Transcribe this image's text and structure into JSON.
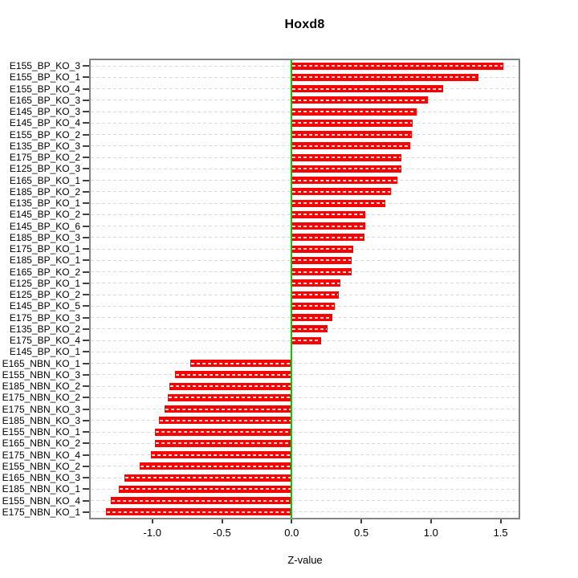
{
  "figure": {
    "background": "#ffffff"
  },
  "chart_data": {
    "type": "bar",
    "orientation": "horizontal",
    "title": "Hoxd8",
    "xlabel": "Z-value",
    "ylabel": "",
    "grid": true,
    "legend": false,
    "xlim": [
      -1.44,
      1.63
    ],
    "bar_color": "#fb0000",
    "zero_line_color": "#00cc00",
    "grid_color": "#d9d9d9",
    "frame_color": "#858585",
    "categories": [
      "E155_BP_KO_3",
      "E155_BP_KO_1",
      "E155_BP_KO_4",
      "E165_BP_KO_3",
      "E145_BP_KO_3",
      "E145_BP_KO_4",
      "E155_BP_KO_2",
      "E135_BP_KO_3",
      "E175_BP_KO_2",
      "E125_BP_KO_3",
      "E165_BP_KO_1",
      "E185_BP_KO_2",
      "E135_BP_KO_1",
      "E145_BP_KO_2",
      "E145_BP_KO_6",
      "E185_BP_KO_3",
      "E175_BP_KO_1",
      "E185_BP_KO_1",
      "E165_BP_KO_2",
      "E125_BP_KO_1",
      "E125_BP_KO_2",
      "E145_BP_KO_5",
      "E175_BP_KO_3",
      "E135_BP_KO_2",
      "E175_BP_KO_4",
      "E145_BP_KO_1",
      "E165_NBN_KO_1",
      "E155_NBN_KO_3",
      "E185_NBN_KO_2",
      "E175_NBN_KO_2",
      "E175_NBN_KO_3",
      "E185_NBN_KO_3",
      "E155_NBN_KO_1",
      "E165_NBN_KO_2",
      "E175_NBN_KO_4",
      "E155_NBN_KO_2",
      "E165_NBN_KO_3",
      "E185_NBN_KO_1",
      "E155_NBN_KO_4",
      "E175_NBN_KO_1"
    ],
    "values": [
      1.52,
      1.34,
      1.09,
      0.98,
      0.9,
      0.87,
      0.86,
      0.85,
      0.79,
      0.79,
      0.76,
      0.71,
      0.67,
      0.53,
      0.53,
      0.52,
      0.44,
      0.43,
      0.43,
      0.35,
      0.34,
      0.31,
      0.29,
      0.26,
      0.21,
      0.0,
      -0.73,
      -0.84,
      -0.88,
      -0.89,
      -0.91,
      -0.95,
      -0.98,
      -0.98,
      -1.01,
      -1.09,
      -1.2,
      -1.24,
      -1.3,
      -1.33
    ],
    "x_ticks": [
      {
        "value": -1.0,
        "label": "-1.0"
      },
      {
        "value": -0.5,
        "label": "-0.5"
      },
      {
        "value": 0.0,
        "label": "0.0"
      },
      {
        "value": 0.5,
        "label": "0.5"
      },
      {
        "value": 1.0,
        "label": "1.0"
      },
      {
        "value": 1.5,
        "label": "1.5"
      }
    ]
  }
}
